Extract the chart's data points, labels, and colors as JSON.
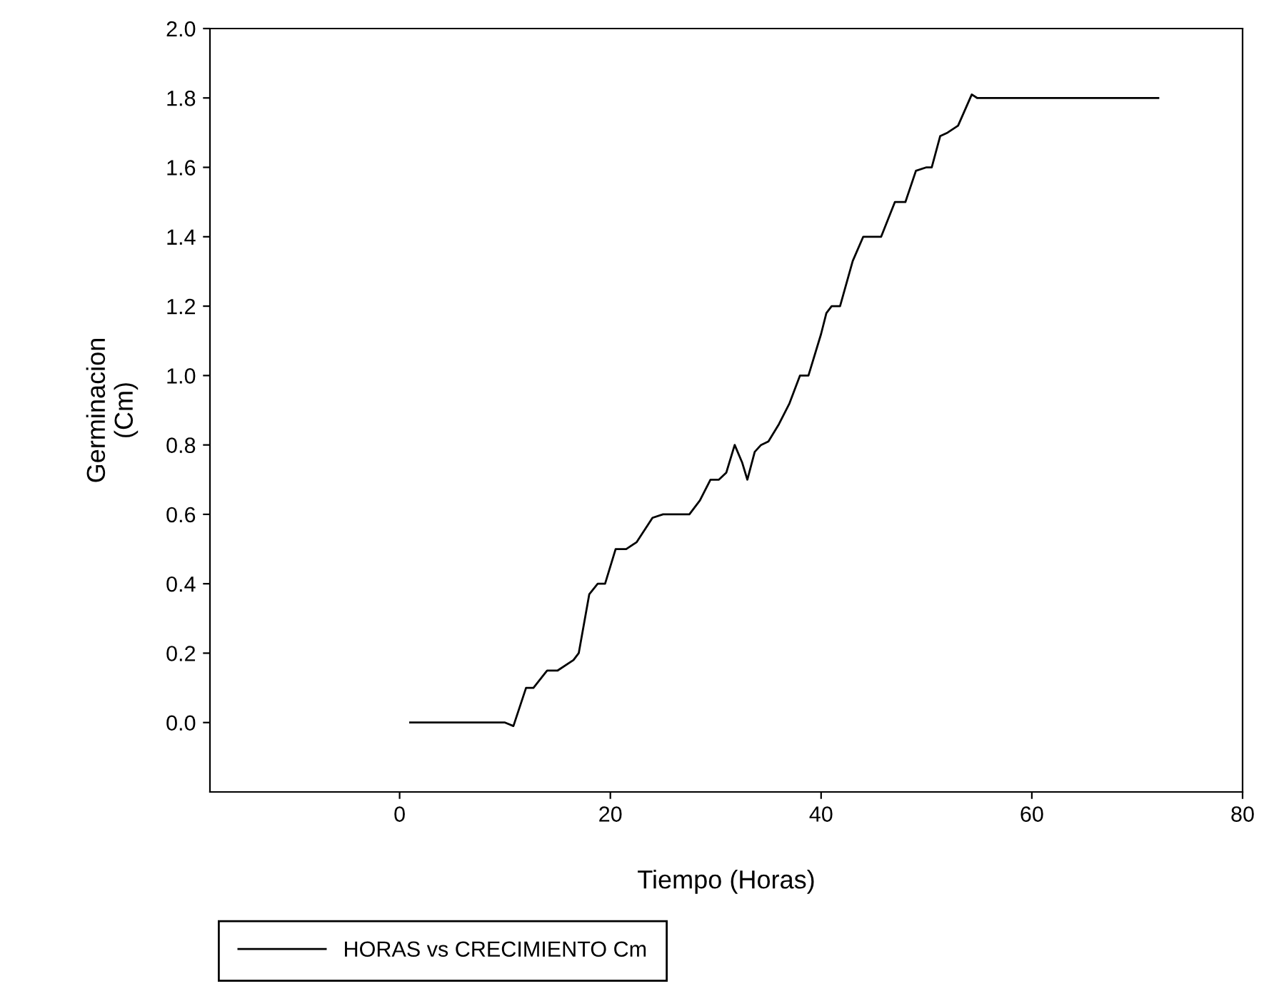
{
  "chart_data": {
    "type": "line",
    "xlabel": "Tiempo (Horas)",
    "ylabel": "Germinacion\n(Cm)",
    "xlim": [
      -18,
      80
    ],
    "xticks": [
      0,
      20,
      40,
      60,
      80
    ],
    "ylim": [
      -0.2,
      2.0
    ],
    "yticks": [
      {
        "value": 0,
        "label": "0.0"
      },
      0.2,
      0.4,
      0.6,
      0.8,
      {
        "value": 1,
        "label": "1.0"
      },
      1.2,
      1.4,
      1.6,
      1.8,
      {
        "value": 2,
        "label": "2.0"
      }
    ],
    "grid": false,
    "legend": "bottom left",
    "marker": "none",
    "line_style": "solid",
    "series": [
      {
        "name": "HORAS vs CRECIMIENTO Cm",
        "color": "#000000",
        "x": [
          1,
          9,
          10,
          10.8,
          12,
          12.7,
          14,
          15,
          16.5,
          17,
          18,
          18.8,
          19.5,
          20.5,
          21.5,
          22.5,
          24,
          25,
          26,
          27.5,
          28.5,
          29.5,
          30.3,
          31,
          31.8,
          32.5,
          33,
          33.7,
          34.3,
          35,
          36,
          37,
          38,
          38.8,
          40,
          40.5,
          41,
          41.8,
          43,
          44,
          45,
          45.7,
          47,
          48,
          49,
          50,
          50.5,
          51.3,
          52,
          53,
          54.3,
          54.8,
          55.5,
          56.5,
          72
        ],
        "values": [
          0,
          0,
          0,
          -0.01,
          0.1,
          0.1,
          0.15,
          0.15,
          0.18,
          0.2,
          0.37,
          0.4,
          0.4,
          0.5,
          0.5,
          0.52,
          0.59,
          0.6,
          0.6,
          0.6,
          0.64,
          0.7,
          0.7,
          0.72,
          0.8,
          0.75,
          0.7,
          0.78,
          0.8,
          0.81,
          0.86,
          0.92,
          1.0,
          1.0,
          1.12,
          1.18,
          1.2,
          1.2,
          1.33,
          1.4,
          1.4,
          1.4,
          1.5,
          1.5,
          1.59,
          1.6,
          1.6,
          1.69,
          1.7,
          1.72,
          1.81,
          1.8,
          1.8,
          1.8,
          1.8
        ]
      }
    ]
  }
}
